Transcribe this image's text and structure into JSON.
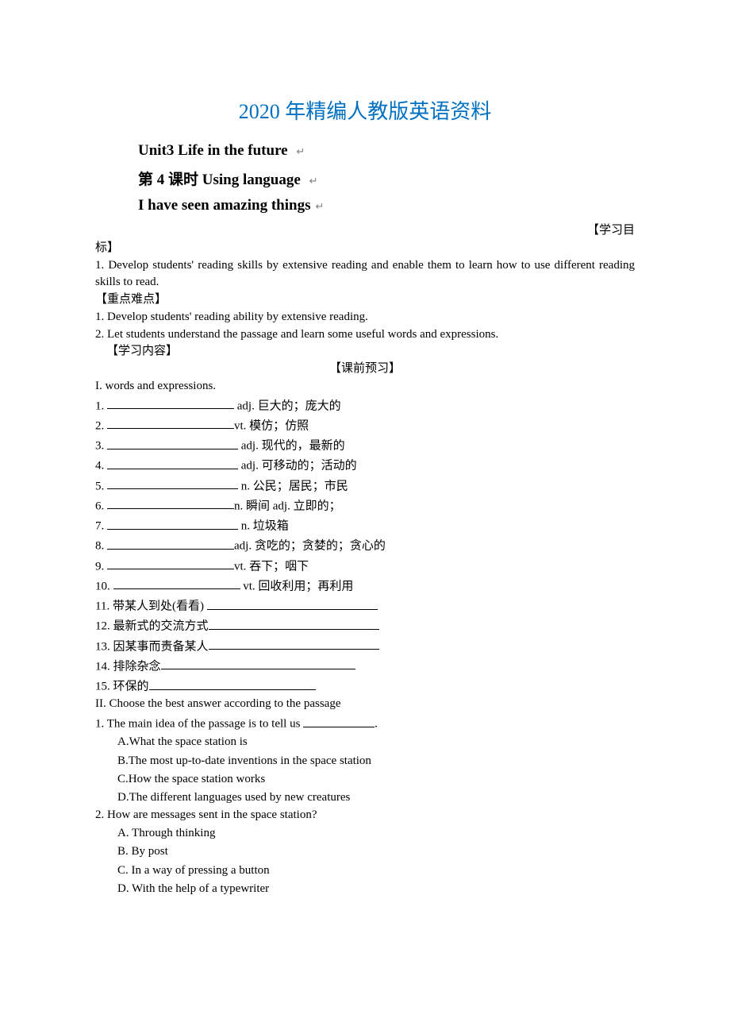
{
  "mainTitle": "2020 年精编人教版英语资料",
  "headings": {
    "unit": "Unit3 Life in the future",
    "lesson": "第 4 课时  Using language",
    "topic": "I have seen amazing things"
  },
  "returnMark": "↵",
  "labels": {
    "objective": "【学习目",
    "objectiveTail": "标】",
    "difficulty": "【重点难点】",
    "content": "【学习内容】",
    "preview": "【课前预习】"
  },
  "objectives": {
    "o1": "1. Develop students' reading skills by extensive reading and enable them to learn how to use different reading skills to read."
  },
  "difficulties": {
    "d1": "1. Develop students' reading ability by extensive reading.",
    "d2": "2. Let students understand the passage and learn some useful words and expressions."
  },
  "section1": {
    "heading": "I. words and expressions.",
    "rows": [
      {
        "num": "1.",
        "after": " adj. 巨大的；庞大的"
      },
      {
        "num": "2.",
        "after": "vt.   模仿；仿照"
      },
      {
        "num": "3.",
        "after": " adj. 现代的，最新的"
      },
      {
        "num": "4.",
        "after": " adj. 可移动的；活动的"
      },
      {
        "num": "5.",
        "after": "  n. 公民；居民；市民"
      },
      {
        "num": "6.",
        "after": "n. 瞬间    adj. 立即的；"
      },
      {
        "num": "7.",
        "after": " n. 垃圾箱"
      },
      {
        "num": "8.",
        "after": "adj. 贪吃的；贪婪的；贪心的"
      },
      {
        "num": "9.",
        "after": "vt. 吞下；咽下"
      },
      {
        "num": "10.",
        "after": " vt. 回收利用；再利用"
      }
    ],
    "phrases": [
      {
        "num": "11.",
        "before": " 带某人到处(看看) "
      },
      {
        "num": "12.",
        "before": " 最新式的交流方式"
      },
      {
        "num": "13.",
        "before": " 因某事而责备某人"
      },
      {
        "num": "14.",
        "before": " 排除杂念"
      },
      {
        "num": "15.",
        "before": " 环保的"
      }
    ]
  },
  "section2": {
    "heading": "II. Choose the best answer according to the passage",
    "q1": {
      "stem": "1. The main idea of the passage is to tell us   ",
      "tail": ".",
      "a": "A.What the space station is",
      "b": "B.The most up-to-date inventions in the space station",
      "c": "C.How the space station works",
      "d": "D.The different languages used by new creatures"
    },
    "q2": {
      "stem": "2. How are messages sent in the space station?",
      "a": "A. Through thinking",
      "b": "B. By post",
      "c": "C. In a way of pressing a button",
      "d": "D. With the help of a typewriter"
    }
  }
}
